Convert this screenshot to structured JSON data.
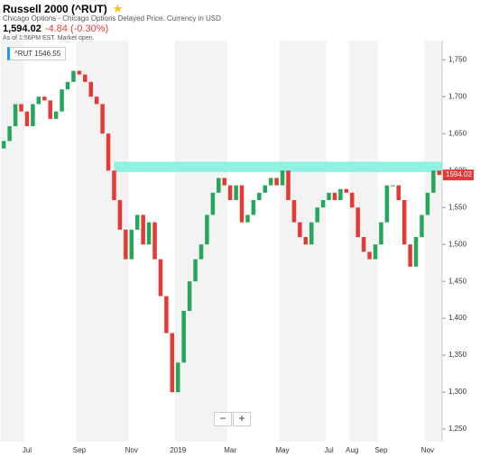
{
  "header": {
    "title": "Russell 2000 (^RUT)",
    "subtitle": "Chicago Options - Chicago Options Delayed Price. Currency in USD",
    "price": "1,594.02",
    "change": "-4.84 (-0.30%)",
    "as_of": "As of 1:56PM EST. Market open."
  },
  "chart_data": {
    "type": "candlestick",
    "legend_label": "^RUT 1546.55",
    "last_label": "1594.02",
    "last_value": 1594.02,
    "categories": [
      null,
      null,
      null,
      null,
      "Jul",
      null,
      null,
      null,
      null,
      null,
      null,
      null,
      null,
      "Sep",
      null,
      null,
      null,
      null,
      null,
      null,
      null,
      null,
      "Nov",
      null,
      null,
      null,
      null,
      null,
      null,
      null,
      "2019",
      null,
      null,
      null,
      null,
      null,
      null,
      null,
      null,
      "Mar",
      null,
      null,
      null,
      null,
      null,
      null,
      null,
      null,
      "May",
      null,
      null,
      null,
      null,
      null,
      null,
      null,
      "Jul",
      null,
      null,
      null,
      "Aug",
      null,
      null,
      null,
      null,
      "Sep",
      null,
      null,
      null,
      null,
      null,
      null,
      null,
      "Nov",
      null,
      null
    ],
    "open": [
      1630,
      1640,
      1660,
      1690,
      1680,
      1660,
      1690,
      1700,
      1695,
      1670,
      1680,
      1710,
      1720,
      1735,
      1730,
      1720,
      1700,
      1690,
      1650,
      1600,
      1560,
      1520,
      1480,
      1520,
      1540,
      1500,
      1530,
      1480,
      1430,
      1380,
      1300,
      1340,
      1410,
      1450,
      1480,
      1500,
      1540,
      1570,
      1590,
      1580,
      1560,
      1580,
      1530,
      1540,
      1560,
      1570,
      1580,
      1590,
      1580,
      1600,
      1560,
      1530,
      1510,
      1500,
      1530,
      1550,
      1560,
      1570,
      1560,
      1575,
      1570,
      1550,
      1510,
      1490,
      1480,
      1500,
      1530,
      1580,
      1580,
      1560,
      1500,
      1470,
      1510,
      1540,
      1570,
      1600
    ],
    "close": [
      1640,
      1660,
      1690,
      1680,
      1660,
      1690,
      1700,
      1695,
      1670,
      1680,
      1710,
      1720,
      1735,
      1730,
      1720,
      1700,
      1690,
      1650,
      1600,
      1560,
      1520,
      1480,
      1520,
      1540,
      1500,
      1530,
      1480,
      1430,
      1380,
      1300,
      1340,
      1410,
      1450,
      1480,
      1500,
      1540,
      1570,
      1590,
      1580,
      1560,
      1580,
      1530,
      1540,
      1560,
      1570,
      1580,
      1590,
      1580,
      1600,
      1560,
      1530,
      1510,
      1500,
      1530,
      1550,
      1560,
      1570,
      1560,
      1575,
      1570,
      1550,
      1510,
      1490,
      1480,
      1500,
      1530,
      1580,
      1580,
      1560,
      1500,
      1470,
      1510,
      1540,
      1570,
      1600,
      1594.02
    ],
    "up_color": "#26a65b",
    "down_color": "#e53935",
    "band": {
      "from": 1598,
      "to": 1612,
      "start_index": 19,
      "color": "#7eeedd"
    },
    "ylim": [
      1233,
      1776
    ],
    "yticks": [
      {
        "value": 1250,
        "label": "1,250"
      },
      {
        "value": 1300,
        "label": "1,300"
      },
      {
        "value": 1350,
        "label": "1,350"
      },
      {
        "value": 1400,
        "label": "1,400"
      },
      {
        "value": 1450,
        "label": "1,450"
      },
      {
        "value": 1500,
        "label": "1,500"
      },
      {
        "value": 1550,
        "label": "1,550"
      },
      {
        "value": 1600,
        "label": "1,600"
      },
      {
        "value": 1650,
        "label": "1,650"
      },
      {
        "value": 1700,
        "label": "1,700"
      },
      {
        "value": 1750,
        "label": "1,750"
      }
    ]
  }
}
